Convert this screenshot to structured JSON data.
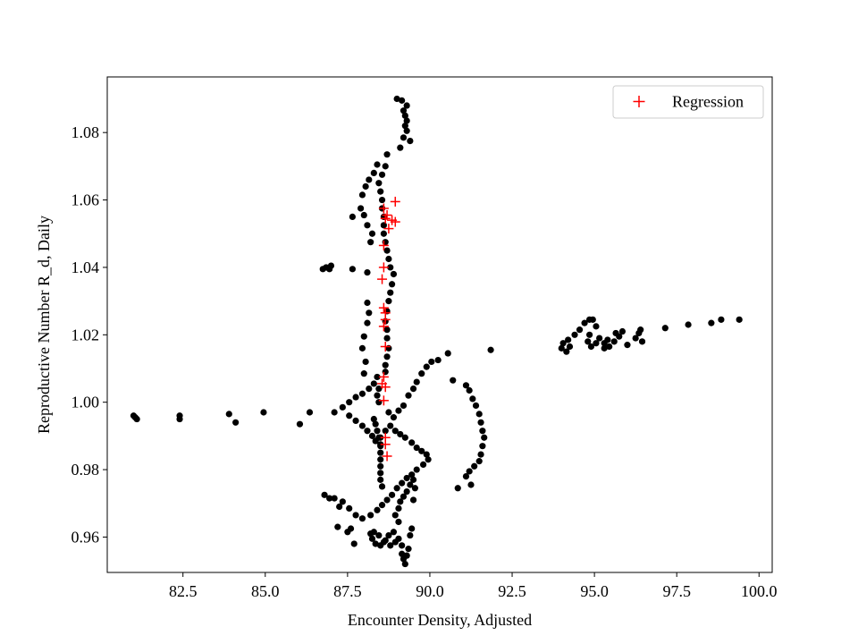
{
  "chart_data": {
    "type": "scatter",
    "title": "",
    "xlabel": "Encounter Density, Adjusted",
    "ylabel": "Reproductive Number R_d, Daily",
    "xlim": [
      80.2,
      100.4
    ],
    "ylim": [
      0.9495,
      1.0965
    ],
    "xticks": [
      82.5,
      85.0,
      87.5,
      90.0,
      92.5,
      95.0,
      97.5,
      100.0
    ],
    "xtick_labels": [
      "82.5",
      "85.0",
      "87.5",
      "90.0",
      "92.5",
      "95.0",
      "97.5",
      "100.0"
    ],
    "yticks": [
      0.96,
      0.98,
      1.0,
      1.02,
      1.04,
      1.06,
      1.08
    ],
    "ytick_labels": [
      "0.96",
      "0.98",
      "1.00",
      "1.02",
      "1.04",
      "1.06",
      "1.08"
    ],
    "grid": false,
    "legend": {
      "position": "top-right",
      "entries": [
        "Regression"
      ]
    },
    "colors": {
      "points": "#000000",
      "regression": "#ff0000",
      "axes": "#000000"
    },
    "series": [
      {
        "marker": "dot",
        "color": "#000000",
        "points": [
          [
            81.0,
            0.996
          ],
          [
            81.1,
            0.995
          ],
          [
            81.05,
            0.9955
          ],
          [
            82.4,
            0.996
          ],
          [
            82.4,
            0.995
          ],
          [
            83.9,
            0.9965
          ],
          [
            84.1,
            0.994
          ],
          [
            84.95,
            0.997
          ],
          [
            86.05,
            0.9935
          ],
          [
            86.35,
            0.997
          ],
          [
            86.75,
            1.0395
          ],
          [
            86.85,
            1.04
          ],
          [
            86.95,
            1.0395
          ],
          [
            87.0,
            1.0405
          ],
          [
            87.65,
            1.0395
          ],
          [
            88.1,
            1.0385
          ],
          [
            87.1,
            0.997
          ],
          [
            87.35,
            0.9985
          ],
          [
            87.55,
            1.0
          ],
          [
            87.75,
            1.0015
          ],
          [
            87.95,
            1.0025
          ],
          [
            88.15,
            1.004
          ],
          [
            88.3,
            1.0055
          ],
          [
            88.4,
            1.0075
          ],
          [
            87.55,
            0.996
          ],
          [
            87.75,
            0.9945
          ],
          [
            87.95,
            0.993
          ],
          [
            88.1,
            0.9915
          ],
          [
            88.25,
            0.99
          ],
          [
            88.35,
            0.9885
          ],
          [
            88.5,
            0.9875
          ],
          [
            88.5,
            0.9895
          ],
          [
            88.65,
            0.9915
          ],
          [
            88.8,
            0.993
          ],
          [
            88.95,
            0.9915
          ],
          [
            89.1,
            0.9905
          ],
          [
            89.25,
            0.9895
          ],
          [
            89.45,
            0.988
          ],
          [
            89.6,
            0.9865
          ],
          [
            89.75,
            0.9855
          ],
          [
            89.9,
            0.9845
          ],
          [
            89.95,
            0.983
          ],
          [
            89.8,
            0.9815
          ],
          [
            89.6,
            0.98
          ],
          [
            89.45,
            0.9785
          ],
          [
            89.3,
            0.9775
          ],
          [
            89.15,
            0.976
          ],
          [
            89.0,
            0.9745
          ],
          [
            88.85,
            0.9725
          ],
          [
            88.7,
            0.971
          ],
          [
            88.55,
            0.9695
          ],
          [
            88.4,
            0.968
          ],
          [
            88.2,
            0.9665
          ],
          [
            87.95,
            0.9655
          ],
          [
            87.75,
            0.9665
          ],
          [
            87.55,
            0.9685
          ],
          [
            87.35,
            0.9705
          ],
          [
            87.1,
            0.9715
          ],
          [
            86.8,
            0.9725
          ],
          [
            86.95,
            0.9715
          ],
          [
            87.25,
            0.969
          ],
          [
            87.2,
            0.963
          ],
          [
            87.5,
            0.9615
          ],
          [
            87.6,
            0.9625
          ],
          [
            87.7,
            0.958
          ],
          [
            88.2,
            0.961
          ],
          [
            88.25,
            0.9595
          ],
          [
            88.35,
            0.958
          ],
          [
            88.5,
            0.9575
          ],
          [
            88.65,
            0.959
          ],
          [
            88.8,
            0.9575
          ],
          [
            88.95,
            0.9585
          ],
          [
            88.3,
            0.9615
          ],
          [
            88.45,
            0.9605
          ],
          [
            88.6,
            0.9585
          ],
          [
            88.75,
            0.9605
          ],
          [
            88.9,
            0.9615
          ],
          [
            89.05,
            0.9595
          ],
          [
            89.15,
            0.9575
          ],
          [
            89.15,
            0.955
          ],
          [
            89.2,
            0.9535
          ],
          [
            89.25,
            0.952
          ],
          [
            89.3,
            0.9545
          ],
          [
            89.35,
            0.9565
          ],
          [
            89.4,
            0.9605
          ],
          [
            89.45,
            0.9625
          ],
          [
            89.05,
            0.9645
          ],
          [
            88.95,
            0.9665
          ],
          [
            89.05,
            0.9685
          ],
          [
            89.1,
            0.9705
          ],
          [
            89.2,
            0.972
          ],
          [
            89.3,
            0.9735
          ],
          [
            89.4,
            0.9755
          ],
          [
            89.5,
            0.977
          ],
          [
            89.55,
            0.9745
          ],
          [
            89.5,
            0.971
          ],
          [
            88.3,
            0.995
          ],
          [
            88.35,
            0.9935
          ],
          [
            88.4,
            0.9915
          ],
          [
            88.45,
            0.9895
          ],
          [
            88.5,
            0.987
          ],
          [
            88.5,
            0.985
          ],
          [
            88.5,
            0.983
          ],
          [
            88.5,
            0.981
          ],
          [
            88.5,
            0.979
          ],
          [
            88.5,
            0.977
          ],
          [
            88.55,
            0.975
          ],
          [
            88.45,
            1.0
          ],
          [
            88.4,
            1.002
          ],
          [
            88.45,
            1.004
          ],
          [
            88.75,
            0.997
          ],
          [
            88.9,
            0.9955
          ],
          [
            89.05,
            0.9975
          ],
          [
            89.2,
            0.999
          ],
          [
            89.35,
            1.002
          ],
          [
            89.5,
            1.004
          ],
          [
            89.6,
            1.006
          ],
          [
            89.75,
            1.0085
          ],
          [
            89.9,
            1.0105
          ],
          [
            90.05,
            1.012
          ],
          [
            90.25,
            1.0125
          ],
          [
            90.55,
            1.0145
          ],
          [
            90.7,
            1.0065
          ],
          [
            91.85,
            1.0155
          ],
          [
            91.1,
            1.005
          ],
          [
            91.2,
            1.0035
          ],
          [
            91.3,
            1.001
          ],
          [
            91.4,
            0.999
          ],
          [
            91.5,
            0.9965
          ],
          [
            91.55,
            0.994
          ],
          [
            91.6,
            0.9915
          ],
          [
            91.65,
            0.9895
          ],
          [
            91.6,
            0.987
          ],
          [
            91.55,
            0.9845
          ],
          [
            91.5,
            0.9825
          ],
          [
            91.35,
            0.981
          ],
          [
            91.2,
            0.9795
          ],
          [
            91.1,
            0.978
          ],
          [
            91.25,
            0.9755
          ],
          [
            90.85,
            0.9745
          ],
          [
            88.65,
            1.009
          ],
          [
            88.65,
            1.011
          ],
          [
            88.7,
            1.0135
          ],
          [
            88.75,
            1.016
          ],
          [
            88.7,
            1.019
          ],
          [
            88.7,
            1.0215
          ],
          [
            88.65,
            1.024
          ],
          [
            88.7,
            1.027
          ],
          [
            88.75,
            1.03
          ],
          [
            88.8,
            1.0325
          ],
          [
            88.85,
            1.035
          ],
          [
            88.9,
            1.038
          ],
          [
            88.8,
            1.04
          ],
          [
            88.75,
            1.0425
          ],
          [
            88.7,
            1.045
          ],
          [
            88.65,
            1.0475
          ],
          [
            88.6,
            1.05
          ],
          [
            88.6,
            1.0525
          ],
          [
            88.6,
            1.055
          ],
          [
            88.55,
            1.0575
          ],
          [
            88.55,
            1.06
          ],
          [
            88.5,
            1.0625
          ],
          [
            88.45,
            1.065
          ],
          [
            88.55,
            1.0675
          ],
          [
            88.65,
            1.07
          ],
          [
            88.7,
            1.0735
          ],
          [
            88.2,
            1.0475
          ],
          [
            88.25,
            1.05
          ],
          [
            88.1,
            1.0525
          ],
          [
            88.0,
            1.0555
          ],
          [
            87.9,
            1.0575
          ],
          [
            87.95,
            1.0615
          ],
          [
            88.05,
            1.064
          ],
          [
            88.15,
            1.066
          ],
          [
            88.3,
            1.068
          ],
          [
            88.4,
            1.0705
          ],
          [
            87.65,
            1.055
          ],
          [
            88.1,
            1.0295
          ],
          [
            88.15,
            1.0265
          ],
          [
            88.1,
            1.0235
          ],
          [
            88.0,
            1.0195
          ],
          [
            87.95,
            1.016
          ],
          [
            88.05,
            1.012
          ],
          [
            88.0,
            1.0085
          ],
          [
            89.0,
            1.09
          ],
          [
            89.15,
            1.0895
          ],
          [
            89.3,
            1.088
          ],
          [
            89.2,
            1.0865
          ],
          [
            89.25,
            1.085
          ],
          [
            89.3,
            1.0835
          ],
          [
            89.25,
            1.082
          ],
          [
            89.3,
            1.0805
          ],
          [
            89.2,
            1.0785
          ],
          [
            89.4,
            1.0775
          ],
          [
            89.1,
            1.0755
          ],
          [
            94.0,
            1.016
          ],
          [
            94.05,
            1.0175
          ],
          [
            94.2,
            1.0185
          ],
          [
            94.25,
            1.0165
          ],
          [
            94.15,
            1.015
          ],
          [
            94.4,
            1.02
          ],
          [
            94.55,
            1.0215
          ],
          [
            94.7,
            1.0235
          ],
          [
            94.85,
            1.0245
          ],
          [
            94.95,
            1.0245
          ],
          [
            95.05,
            1.0225
          ],
          [
            94.85,
            1.02
          ],
          [
            94.8,
            1.018
          ],
          [
            94.9,
            1.0165
          ],
          [
            95.05,
            1.0175
          ],
          [
            95.15,
            1.019
          ],
          [
            95.3,
            1.0175
          ],
          [
            95.45,
            1.0165
          ],
          [
            95.6,
            1.018
          ],
          [
            95.75,
            1.0195
          ],
          [
            95.85,
            1.021
          ],
          [
            95.65,
            1.0205
          ],
          [
            95.4,
            1.0185
          ],
          [
            95.3,
            1.016
          ],
          [
            96.0,
            1.017
          ],
          [
            96.25,
            1.019
          ],
          [
            96.35,
            1.0205
          ],
          [
            96.4,
            1.0215
          ],
          [
            96.45,
            1.018
          ],
          [
            97.15,
            1.022
          ],
          [
            97.85,
            1.023
          ],
          [
            98.55,
            1.0235
          ],
          [
            98.85,
            1.0245
          ],
          [
            99.4,
            1.0245
          ]
        ]
      },
      {
        "name": "Regression",
        "marker": "plus",
        "color": "#ff0000",
        "points": [
          [
            88.95,
            1.0595
          ],
          [
            88.6,
            1.0575
          ],
          [
            88.7,
            1.0555
          ],
          [
            88.65,
            1.0545
          ],
          [
            88.85,
            1.054
          ],
          [
            88.95,
            1.0535
          ],
          [
            88.75,
            1.0515
          ],
          [
            88.6,
            1.0465
          ],
          [
            88.6,
            1.04
          ],
          [
            88.55,
            1.0365
          ],
          [
            88.6,
            1.028
          ],
          [
            88.65,
            1.0265
          ],
          [
            88.65,
            1.0245
          ],
          [
            88.6,
            1.0225
          ],
          [
            88.65,
            1.0165
          ],
          [
            88.6,
            1.0075
          ],
          [
            88.55,
            1.0055
          ],
          [
            88.65,
            1.0045
          ],
          [
            88.6,
            1.0005
          ],
          [
            88.65,
            0.9895
          ],
          [
            88.65,
            0.9875
          ],
          [
            88.7,
            0.984
          ]
        ]
      }
    ]
  }
}
